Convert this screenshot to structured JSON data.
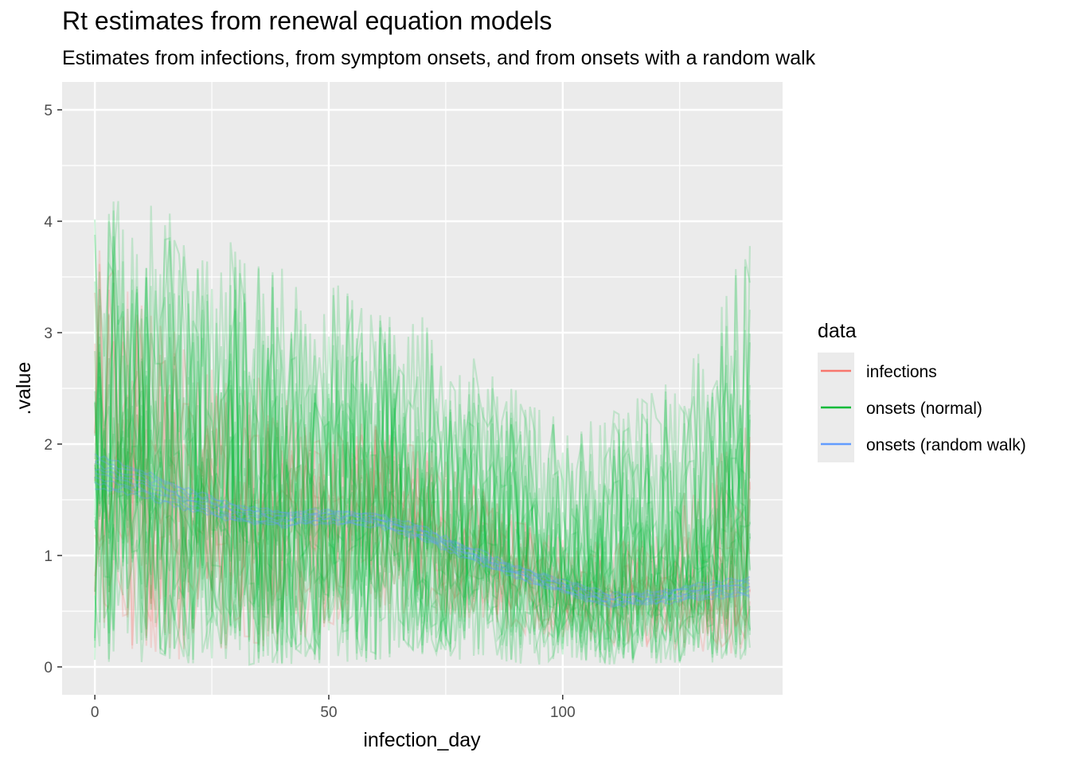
{
  "chart_data": {
    "type": "line",
    "title": "Rt estimates from renewal equation models",
    "subtitle": "Estimates from infections, from symptom onsets, and from onsets with a random walk",
    "xlabel": "infection_day",
    "ylabel": ".value",
    "xlim": [
      -7,
      147
    ],
    "ylim": [
      -0.25,
      5.25
    ],
    "x_ticks": [
      0,
      50,
      100
    ],
    "y_ticks": [
      0,
      1,
      2,
      3,
      4,
      5
    ],
    "grid": true,
    "legend": {
      "title": "data",
      "position": "right"
    },
    "series": [
      {
        "name": "infections",
        "color": "#F8766D",
        "x": [
          0,
          10,
          20,
          30,
          40,
          50,
          60,
          70,
          80,
          90,
          100,
          110,
          120,
          130,
          140
        ],
        "center": [
          1.8,
          1.65,
          1.5,
          1.4,
          1.35,
          1.35,
          1.35,
          1.25,
          1.05,
          0.85,
          0.75,
          0.65,
          0.7,
          0.75,
          0.7
        ],
        "low": [
          0.2,
          0.1,
          0.05,
          0.1,
          0.2,
          0.3,
          0.4,
          0.5,
          0.4,
          0.3,
          0.25,
          0.2,
          0.15,
          0.1,
          0.1
        ],
        "high": [
          3.8,
          3.3,
          2.9,
          2.7,
          2.5,
          2.3,
          2.2,
          2.0,
          1.7,
          1.4,
          1.2,
          1.1,
          1.2,
          1.8,
          2.2
        ],
        "draws": 10
      },
      {
        "name": "onsets (normal)",
        "color": "#00BA38",
        "x": [
          0,
          10,
          20,
          30,
          40,
          50,
          60,
          70,
          80,
          90,
          100,
          110,
          120,
          130,
          140
        ],
        "center": [
          1.7,
          1.6,
          1.5,
          1.4,
          1.3,
          1.3,
          1.3,
          1.2,
          1.0,
          0.85,
          0.75,
          0.65,
          0.7,
          0.9,
          1.3
        ],
        "low": [
          0.05,
          0.02,
          0.01,
          0.01,
          0.01,
          0.02,
          0.05,
          0.05,
          0.05,
          0.02,
          0.02,
          0.02,
          0.02,
          0.02,
          0.05
        ],
        "high": [
          4.3,
          4.2,
          4.0,
          3.8,
          3.7,
          3.5,
          3.4,
          3.2,
          2.8,
          2.5,
          2.2,
          2.3,
          2.5,
          3.0,
          3.9
        ],
        "draws": 24
      },
      {
        "name": "onsets (random walk)",
        "color": "#619CFF",
        "x": [
          0,
          10,
          20,
          30,
          40,
          50,
          60,
          70,
          80,
          90,
          100,
          110,
          120,
          130,
          140
        ],
        "center": [
          1.75,
          1.65,
          1.5,
          1.38,
          1.33,
          1.35,
          1.32,
          1.2,
          1.02,
          0.85,
          0.72,
          0.6,
          0.62,
          0.68,
          0.72
        ],
        "low": [
          1.6,
          1.55,
          1.42,
          1.3,
          1.27,
          1.3,
          1.27,
          1.15,
          0.97,
          0.8,
          0.67,
          0.55,
          0.57,
          0.62,
          0.64
        ],
        "high": [
          1.9,
          1.78,
          1.6,
          1.46,
          1.4,
          1.42,
          1.38,
          1.26,
          1.08,
          0.9,
          0.78,
          0.66,
          0.68,
          0.75,
          0.8
        ],
        "draws": 8
      }
    ]
  }
}
